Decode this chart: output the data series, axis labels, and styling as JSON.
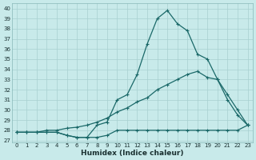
{
  "xlabel": "Humidex (Indice chaleur)",
  "bg_color": "#c8eaea",
  "grid_color": "#a8d0d0",
  "line_color": "#1a6868",
  "xlim": [
    -0.5,
    23.5
  ],
  "ylim": [
    27.0,
    40.5
  ],
  "yticks": [
    27,
    28,
    29,
    30,
    31,
    32,
    33,
    34,
    35,
    36,
    37,
    38,
    39,
    40
  ],
  "xticks": [
    0,
    1,
    2,
    3,
    4,
    5,
    6,
    7,
    8,
    9,
    10,
    11,
    12,
    13,
    14,
    15,
    16,
    17,
    18,
    19,
    20,
    21,
    22,
    23
  ],
  "s1_x": [
    0,
    1,
    2,
    3,
    4,
    5,
    6,
    7,
    8,
    9,
    10,
    11,
    12,
    13,
    14,
    15,
    16,
    17,
    18,
    19,
    20,
    21,
    22,
    23
  ],
  "s1_y": [
    27.8,
    27.8,
    27.8,
    27.8,
    27.8,
    27.5,
    27.3,
    27.3,
    27.3,
    27.5,
    28.0,
    28.0,
    28.0,
    28.0,
    28.0,
    28.0,
    28.0,
    28.0,
    28.0,
    28.0,
    28.0,
    28.0,
    28.0,
    28.5
  ],
  "s2_x": [
    0,
    1,
    2,
    3,
    4,
    5,
    6,
    7,
    8,
    9,
    10,
    11,
    12,
    13,
    14,
    15,
    16,
    17,
    18,
    19,
    20,
    21,
    22,
    23
  ],
  "s2_y": [
    27.8,
    27.8,
    27.8,
    28.0,
    28.0,
    28.2,
    28.3,
    28.5,
    28.8,
    29.2,
    29.8,
    30.2,
    30.8,
    31.2,
    32.0,
    32.5,
    33.0,
    33.5,
    33.8,
    33.2,
    33.0,
    31.5,
    30.0,
    28.5
  ],
  "s3_x": [
    0,
    1,
    2,
    3,
    4,
    5,
    6,
    7,
    8,
    9,
    10,
    11,
    12,
    13,
    14,
    15,
    16,
    17,
    18,
    19,
    20,
    21,
    22,
    23
  ],
  "s3_y": [
    27.8,
    27.8,
    27.8,
    27.8,
    27.8,
    27.5,
    27.3,
    27.3,
    28.5,
    28.8,
    31.0,
    31.5,
    33.5,
    36.5,
    39.0,
    39.8,
    38.5,
    37.8,
    35.5,
    35.0,
    33.0,
    31.0,
    29.5,
    28.5
  ]
}
